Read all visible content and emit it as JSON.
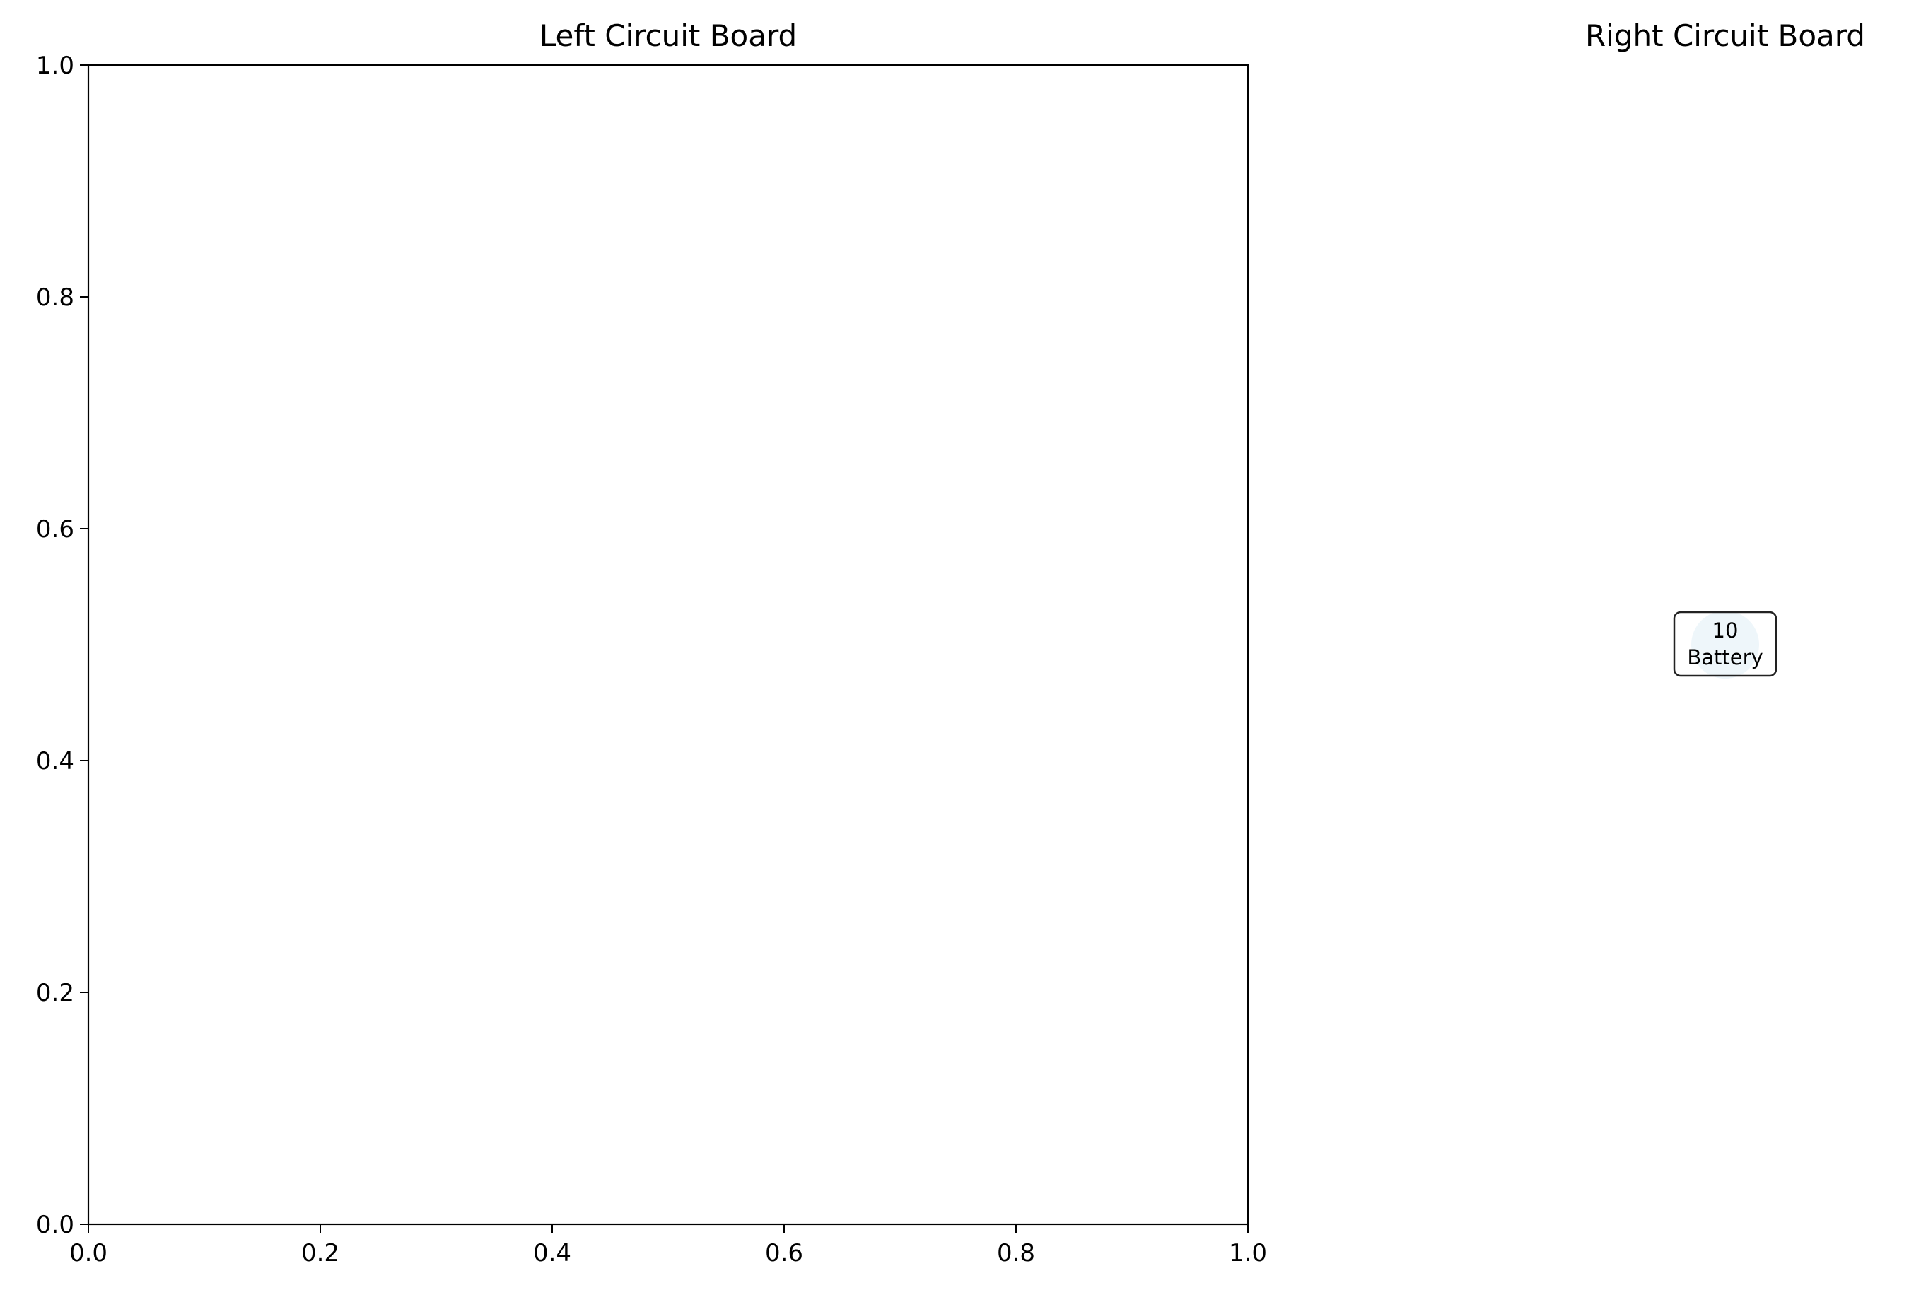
{
  "chart_data": [
    {
      "type": "scatter",
      "title": "Left Circuit Board",
      "xlim": [
        0.0,
        1.0
      ],
      "ylim": [
        0.0,
        1.0
      ],
      "xticks": [
        "0.0",
        "0.2",
        "0.4",
        "0.6",
        "0.8",
        "1.0"
      ],
      "yticks": [
        "0.0",
        "0.2",
        "0.4",
        "0.6",
        "0.8",
        "1.0"
      ],
      "grid": false,
      "points": []
    },
    {
      "type": "scatter",
      "title": "Right Circuit Board",
      "axis_visible": false,
      "grid": false,
      "points": [
        {
          "x": 0.5,
          "y": 0.5,
          "value": "10",
          "label": "Battery",
          "color": "#eef6fa"
        }
      ]
    }
  ]
}
